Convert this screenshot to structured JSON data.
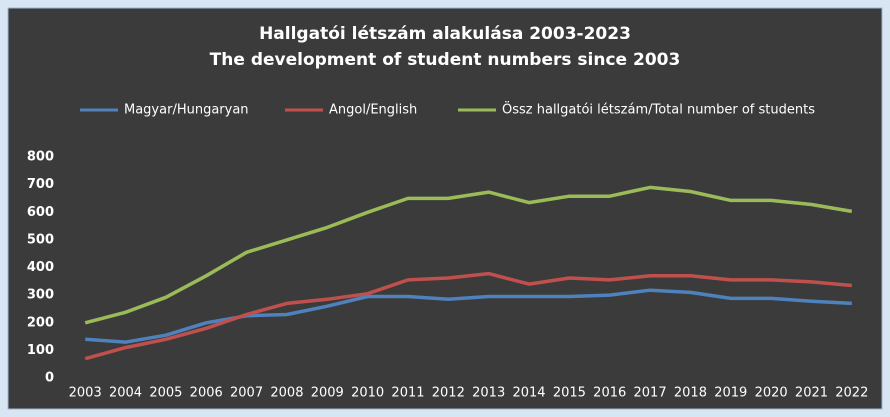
{
  "chart_data": {
    "type": "line",
    "title": "Hallgatói létszám alakulása 2003-2023",
    "subtitle": "The development of student numbers since 2003",
    "categories": [
      "2003",
      "2004",
      "2005",
      "2006",
      "2007",
      "2008",
      "2009",
      "2010",
      "2011",
      "2012",
      "2013",
      "2014",
      "2015",
      "2016",
      "2017",
      "2018",
      "2019",
      "2020",
      "2021",
      "2022"
    ],
    "series": [
      {
        "name": "Magyar/Hungaryan",
        "color": "#4f81bd",
        "values": [
          140,
          130,
          155,
          200,
          225,
          230,
          260,
          295,
          295,
          285,
          295,
          295,
          295,
          300,
          318,
          310,
          288,
          288,
          278,
          270
        ]
      },
      {
        "name": "Angol/English",
        "color": "#c0504d",
        "values": [
          70,
          110,
          140,
          180,
          230,
          270,
          285,
          305,
          355,
          362,
          378,
          340,
          362,
          355,
          370,
          370,
          355,
          355,
          348,
          335
        ]
      },
      {
        "name": "Össz hallgatói létszám/Total number of students",
        "color": "#9bbb59",
        "values": [
          200,
          238,
          292,
          370,
          455,
          500,
          545,
          600,
          650,
          650,
          673,
          635,
          658,
          658,
          690,
          675,
          643,
          643,
          628,
          603
        ]
      }
    ],
    "ylim": [
      0,
      800
    ],
    "yticks": [
      0,
      100,
      200,
      300,
      400,
      500,
      600,
      700,
      800
    ],
    "legend": "top"
  }
}
